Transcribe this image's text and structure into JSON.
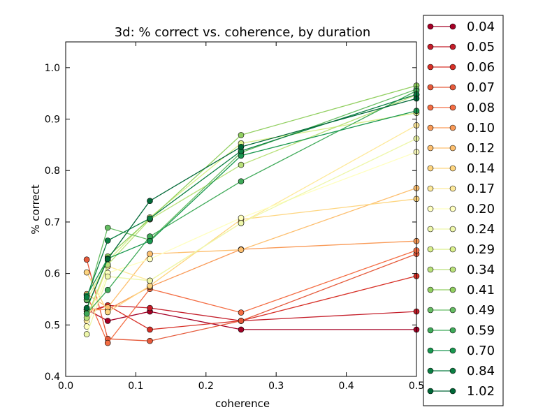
{
  "chart_data": {
    "type": "line",
    "title": "3d: % correct vs. coherence, by duration",
    "xlabel": "coherence",
    "ylabel": "% correct",
    "xlim": [
      0.0,
      0.5
    ],
    "ylim": [
      0.4,
      1.05
    ],
    "xticks": [
      "0.0",
      "0.1",
      "0.2",
      "0.3",
      "0.4",
      "0.5"
    ],
    "yticks": [
      "0.4",
      "0.5",
      "0.6",
      "0.7",
      "0.8",
      "0.9",
      "1.0"
    ],
    "grid": false,
    "legend_position": "right, outside plot",
    "x": [
      0.03,
      0.06,
      0.12,
      0.25,
      0.5
    ],
    "series": [
      {
        "name": "0.04",
        "color": "#a50026",
        "values": [
          0.53,
          0.508,
          0.526,
          0.491,
          0.491
        ]
      },
      {
        "name": "0.05",
        "color": "#c41e2a",
        "values": [
          0.522,
          0.538,
          0.533,
          0.508,
          0.526
        ]
      },
      {
        "name": "0.06",
        "color": "#d73027",
        "values": [
          0.526,
          0.538,
          0.491,
          0.508,
          0.595
        ]
      },
      {
        "name": "0.07",
        "color": "#e55a3b",
        "values": [
          0.627,
          0.473,
          0.469,
          0.508,
          0.638
        ]
      },
      {
        "name": "0.08",
        "color": "#f46d43",
        "values": [
          0.559,
          0.465,
          0.57,
          0.524,
          0.645
        ]
      },
      {
        "name": "0.10",
        "color": "#f99a57",
        "values": [
          0.529,
          0.53,
          0.574,
          0.647,
          0.663
        ]
      },
      {
        "name": "0.12",
        "color": "#fdbf6f",
        "values": [
          0.56,
          0.534,
          0.638,
          0.646,
          0.766
        ]
      },
      {
        "name": "0.14",
        "color": "#fed57f",
        "values": [
          0.602,
          0.525,
          0.576,
          0.705,
          0.745
        ]
      },
      {
        "name": "0.17",
        "color": "#fee99a",
        "values": [
          0.508,
          0.614,
          0.586,
          0.698,
          0.888
        ]
      },
      {
        "name": "0.20",
        "color": "#ffffbf",
        "values": [
          0.497,
          0.601,
          0.628,
          0.708,
          0.836
        ]
      },
      {
        "name": "0.24",
        "color": "#eef7aa",
        "values": [
          0.482,
          0.594,
          0.586,
          0.698,
          0.862
        ]
      },
      {
        "name": "0.29",
        "color": "#d9ef8b",
        "values": [
          0.548,
          0.624,
          0.709,
          0.853,
          0.912
        ]
      },
      {
        "name": "0.34",
        "color": "#b9e17a",
        "values": [
          0.514,
          0.617,
          0.705,
          0.811,
          0.947
        ]
      },
      {
        "name": "0.41",
        "color": "#91cf60",
        "values": [
          0.53,
          0.633,
          0.706,
          0.869,
          0.965
        ]
      },
      {
        "name": "0.49",
        "color": "#66bd63",
        "values": [
          0.549,
          0.689,
          0.665,
          0.835,
          0.958
        ]
      },
      {
        "name": "0.59",
        "color": "#3faa59",
        "values": [
          0.522,
          0.568,
          0.672,
          0.779,
          0.955
        ]
      },
      {
        "name": "0.70",
        "color": "#1a9850",
        "values": [
          0.557,
          0.629,
          0.663,
          0.829,
          0.916
        ]
      },
      {
        "name": "0.84",
        "color": "#0c7f43",
        "values": [
          0.554,
          0.664,
          0.707,
          0.838,
          0.948
        ]
      },
      {
        "name": "1.02",
        "color": "#006837",
        "values": [
          0.533,
          0.628,
          0.741,
          0.846,
          0.94
        ]
      }
    ]
  }
}
